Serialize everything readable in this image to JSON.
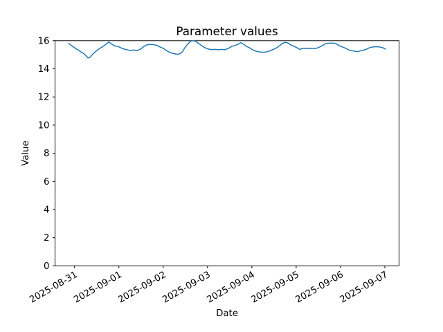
{
  "figure": {
    "background": "#ffffff",
    "plot_background": "#ffffff",
    "spine_color": "#000000"
  },
  "chart_data": {
    "type": "line",
    "title": "Parameter values",
    "xlabel": "Date",
    "ylabel": "Value",
    "legend": null,
    "grid": false,
    "line_color": "#1f77b4",
    "line_width": 1.5,
    "x_unit": "days since 2025-08-31 00:00",
    "x_tick_days": [
      0,
      1,
      2,
      3,
      4,
      5,
      6,
      7
    ],
    "x_tick_labels": [
      "2025-08-31",
      "2025-09-01",
      "2025-09-02",
      "2025-09-03",
      "2025-09-04",
      "2025-09-05",
      "2025-09-06",
      "2025-09-07"
    ],
    "x_tick_rotation": -30,
    "y_ticks": [
      0,
      2,
      4,
      6,
      8,
      10,
      12,
      14,
      16
    ],
    "xlim_days": [
      -0.44,
      7.32
    ],
    "ylim": [
      0,
      16
    ],
    "points": [
      [
        -0.133,
        15.81
      ],
      [
        -0.07,
        15.65
      ],
      [
        -0.008,
        15.52
      ],
      [
        0.07,
        15.36
      ],
      [
        0.148,
        15.2
      ],
      [
        0.211,
        15.08
      ],
      [
        0.273,
        14.88
      ],
      [
        0.304,
        14.77
      ],
      [
        0.351,
        14.82
      ],
      [
        0.413,
        15.05
      ],
      [
        0.491,
        15.27
      ],
      [
        0.569,
        15.45
      ],
      [
        0.647,
        15.6
      ],
      [
        0.71,
        15.75
      ],
      [
        0.772,
        15.9
      ],
      [
        0.819,
        15.8
      ],
      [
        0.866,
        15.7
      ],
      [
        0.913,
        15.62
      ],
      [
        0.975,
        15.6
      ],
      [
        1.038,
        15.5
      ],
      [
        1.1,
        15.42
      ],
      [
        1.178,
        15.36
      ],
      [
        1.256,
        15.3
      ],
      [
        1.334,
        15.34
      ],
      [
        1.412,
        15.3
      ],
      [
        1.49,
        15.4
      ],
      [
        1.568,
        15.6
      ],
      [
        1.63,
        15.7
      ],
      [
        1.693,
        15.73
      ],
      [
        1.771,
        15.72
      ],
      [
        1.849,
        15.68
      ],
      [
        1.927,
        15.55
      ],
      [
        2.005,
        15.45
      ],
      [
        2.083,
        15.28
      ],
      [
        2.161,
        15.15
      ],
      [
        2.239,
        15.08
      ],
      [
        2.317,
        15.03
      ],
      [
        2.364,
        15.06
      ],
      [
        2.426,
        15.18
      ],
      [
        2.488,
        15.5
      ],
      [
        2.551,
        15.75
      ],
      [
        2.613,
        15.95
      ],
      [
        2.675,
        16.0
      ],
      [
        2.738,
        15.94
      ],
      [
        2.8,
        15.8
      ],
      [
        2.863,
        15.66
      ],
      [
        2.941,
        15.5
      ],
      [
        3.003,
        15.42
      ],
      [
        3.081,
        15.37
      ],
      [
        3.159,
        15.38
      ],
      [
        3.237,
        15.36
      ],
      [
        3.315,
        15.38
      ],
      [
        3.393,
        15.36
      ],
      [
        3.471,
        15.45
      ],
      [
        3.549,
        15.6
      ],
      [
        3.627,
        15.66
      ],
      [
        3.69,
        15.75
      ],
      [
        3.752,
        15.86
      ],
      [
        3.814,
        15.74
      ],
      [
        3.877,
        15.6
      ],
      [
        3.955,
        15.48
      ],
      [
        4.017,
        15.35
      ],
      [
        4.095,
        15.25
      ],
      [
        4.173,
        15.2
      ],
      [
        4.251,
        15.18
      ],
      [
        4.329,
        15.2
      ],
      [
        4.407,
        15.28
      ],
      [
        4.485,
        15.38
      ],
      [
        4.563,
        15.5
      ],
      [
        4.626,
        15.65
      ],
      [
        4.688,
        15.8
      ],
      [
        4.75,
        15.88
      ],
      [
        4.813,
        15.84
      ],
      [
        4.875,
        15.7
      ],
      [
        4.953,
        15.6
      ],
      [
        5.016,
        15.5
      ],
      [
        5.078,
        15.38
      ],
      [
        5.14,
        15.45
      ],
      [
        5.218,
        15.46
      ],
      [
        5.296,
        15.45
      ],
      [
        5.374,
        15.46
      ],
      [
        5.452,
        15.45
      ],
      [
        5.53,
        15.55
      ],
      [
        5.593,
        15.65
      ],
      [
        5.655,
        15.78
      ],
      [
        5.733,
        15.82
      ],
      [
        5.811,
        15.83
      ],
      [
        5.889,
        15.8
      ],
      [
        5.967,
        15.65
      ],
      [
        6.045,
        15.55
      ],
      [
        6.123,
        15.45
      ],
      [
        6.201,
        15.32
      ],
      [
        6.264,
        15.28
      ],
      [
        6.326,
        15.25
      ],
      [
        6.389,
        15.22
      ],
      [
        6.451,
        15.28
      ],
      [
        6.513,
        15.32
      ],
      [
        6.591,
        15.4
      ],
      [
        6.669,
        15.52
      ],
      [
        6.747,
        15.56
      ],
      [
        6.825,
        15.57
      ],
      [
        6.888,
        15.55
      ],
      [
        6.95,
        15.5
      ],
      [
        7.013,
        15.4
      ]
    ]
  }
}
